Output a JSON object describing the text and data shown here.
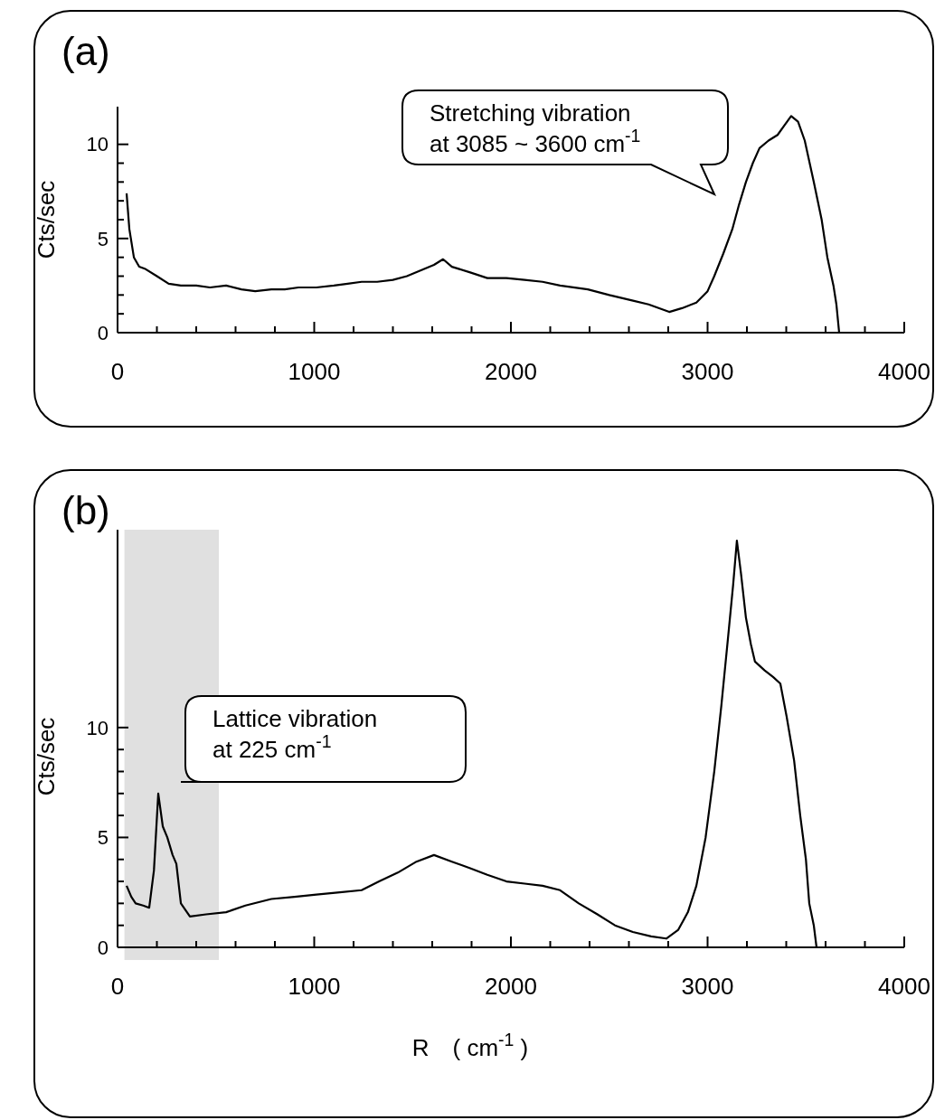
{
  "chart_data": [
    {
      "type": "line",
      "title": "(a)",
      "ylabel": "Cts/sec",
      "x": [
        46,
        60,
        83,
        110,
        138,
        200,
        260,
        322,
        400,
        470,
        552,
        630,
        700,
        782,
        850,
        920,
        1011,
        1100,
        1170,
        1241,
        1320,
        1400,
        1471,
        1540,
        1609,
        1655,
        1700,
        1793,
        1880,
        1977,
        2070,
        2161,
        2250,
        2391,
        2500,
        2621,
        2700,
        2805,
        2870,
        2943,
        3000,
        3034,
        3080,
        3126,
        3160,
        3195,
        3230,
        3264,
        3310,
        3356,
        3390,
        3425,
        3460,
        3494,
        3540,
        3580,
        3609,
        3640,
        3655,
        3669
      ],
      "series": [
        {
          "color": "#000000",
          "values": [
            7.4,
            5.5,
            4.0,
            3.5,
            3.4,
            3.0,
            2.6,
            2.5,
            2.5,
            2.4,
            2.5,
            2.3,
            2.2,
            2.3,
            2.3,
            2.4,
            2.4,
            2.5,
            2.6,
            2.7,
            2.7,
            2.8,
            3.0,
            3.3,
            3.6,
            3.9,
            3.5,
            3.2,
            2.9,
            2.9,
            2.8,
            2.7,
            2.5,
            2.3,
            2.0,
            1.7,
            1.5,
            1.1,
            1.3,
            1.6,
            2.2,
            3.0,
            4.2,
            5.5,
            6.8,
            8.0,
            9.0,
            9.8,
            10.2,
            10.5,
            11.0,
            11.5,
            11.2,
            10.2,
            8.0,
            6.0,
            4.0,
            2.5,
            1.5,
            0
          ]
        }
      ],
      "xlim": [
        0,
        4000
      ],
      "ylim": [
        0,
        12
      ],
      "xticks": [
        0,
        {
          "value": 200,
          "label": null
        },
        {
          "value": 400,
          "label": null
        },
        {
          "value": 600,
          "label": null
        },
        {
          "value": 800,
          "label": null
        },
        1000,
        {
          "value": 1200,
          "label": null
        },
        {
          "value": 1400,
          "label": null
        },
        {
          "value": 1600,
          "label": null
        },
        {
          "value": 1800,
          "label": null
        },
        2000,
        {
          "value": 2200,
          "label": null
        },
        {
          "value": 2400,
          "label": null
        },
        {
          "value": 2600,
          "label": null
        },
        {
          "value": 2800,
          "label": null
        },
        3000,
        {
          "value": 3200,
          "label": null
        },
        {
          "value": 3400,
          "label": null
        },
        {
          "value": 3600,
          "label": null
        },
        {
          "value": 3800,
          "label": null
        },
        4000
      ],
      "yticks": [
        0,
        {
          "value": 1,
          "label": null
        },
        {
          "value": 2,
          "label": null
        },
        {
          "value": 3,
          "label": null
        },
        {
          "value": 4,
          "label": null
        },
        5,
        {
          "value": 6,
          "label": null
        },
        {
          "value": 7,
          "label": null
        },
        {
          "value": 8,
          "label": null
        },
        {
          "value": 9,
          "label": null
        },
        10
      ],
      "annotations": [
        "Stretching vibration at 3085 ~ 3600 cm$^{-1}$"
      ]
    },
    {
      "type": "line",
      "title": "(b)",
      "ylabel": "Cts/sec",
      "xlabel": "R　( cm$^{-1}$ )",
      "x": [
        46,
        70,
        92,
        130,
        161,
        185,
        207,
        230,
        253,
        280,
        299,
        322,
        368,
        450,
        552,
        650,
        782,
        900,
        1011,
        1130,
        1241,
        1330,
        1425,
        1520,
        1609,
        1700,
        1793,
        1880,
        1977,
        2070,
        2161,
        2250,
        2345,
        2440,
        2529,
        2620,
        2713,
        2790,
        2851,
        2900,
        2943,
        2990,
        3034,
        3070,
        3103,
        3130,
        3149,
        3170,
        3195,
        3220,
        3241,
        3290,
        3333,
        3370,
        3402,
        3440,
        3471,
        3500,
        3517,
        3540,
        3554
      ],
      "series": [
        {
          "color": "#000000",
          "values": [
            2.8,
            2.3,
            2.0,
            1.9,
            1.8,
            3.5,
            7.0,
            5.5,
            5.0,
            4.2,
            3.8,
            2.0,
            1.4,
            1.5,
            1.6,
            1.9,
            2.2,
            2.3,
            2.4,
            2.5,
            2.6,
            3.0,
            3.4,
            3.9,
            4.2,
            3.9,
            3.6,
            3.3,
            3.0,
            2.9,
            2.8,
            2.6,
            2.0,
            1.5,
            1.0,
            0.7,
            0.5,
            0.4,
            0.8,
            1.6,
            2.8,
            5.0,
            8.0,
            11.0,
            14.0,
            16.5,
            18.5,
            17.0,
            15.0,
            13.8,
            13.0,
            12.6,
            12.3,
            12.0,
            10.5,
            8.5,
            6.0,
            4.0,
            2.0,
            1.0,
            0
          ]
        }
      ],
      "xlim": [
        0,
        4000
      ],
      "ylim": [
        0,
        19
      ],
      "xticks": [
        0,
        {
          "value": 200,
          "label": null
        },
        {
          "value": 400,
          "label": null
        },
        {
          "value": 600,
          "label": null
        },
        {
          "value": 800,
          "label": null
        },
        1000,
        {
          "value": 1200,
          "label": null
        },
        {
          "value": 1400,
          "label": null
        },
        {
          "value": 1600,
          "label": null
        },
        {
          "value": 1800,
          "label": null
        },
        2000,
        {
          "value": 2200,
          "label": null
        },
        {
          "value": 2400,
          "label": null
        },
        {
          "value": 2600,
          "label": null
        },
        {
          "value": 2800,
          "label": null
        },
        3000,
        {
          "value": 3200,
          "label": null
        },
        {
          "value": 3400,
          "label": null
        },
        {
          "value": 3600,
          "label": null
        },
        {
          "value": 3800,
          "label": null
        },
        4000
      ],
      "yticks": [
        0,
        {
          "value": 1,
          "label": null
        },
        {
          "value": 2,
          "label": null
        },
        {
          "value": 3,
          "label": null
        },
        {
          "value": 4,
          "label": null
        },
        5,
        {
          "value": 6,
          "label": null
        },
        {
          "value": 7,
          "label": null
        },
        {
          "value": 8,
          "label": null
        },
        {
          "value": 9,
          "label": null
        },
        10
      ],
      "bands": [
        {
          "axis": "x",
          "from": 35,
          "to": 515,
          "color": "#e0e0e0"
        }
      ],
      "annotations": [
        "Lattice vibration at 225 cm$^{-1}$"
      ]
    }
  ]
}
